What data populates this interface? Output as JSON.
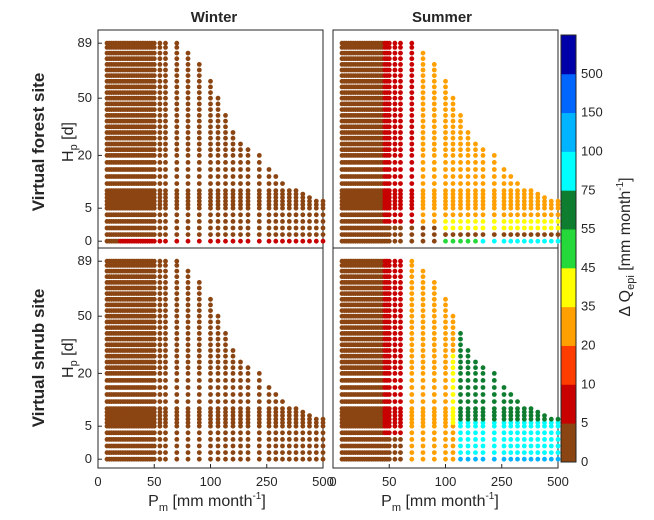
{
  "chart_data": {
    "type": "scatter",
    "col_titles": [
      "Winter",
      "Summer"
    ],
    "row_labels": [
      "Virtual forest site",
      "Virtual shrub site"
    ],
    "xlabel": {
      "main": "P",
      "sub": "m",
      "unit": " [mm month",
      "sup": "-1",
      "close": "]"
    },
    "ylabel": {
      "main": "H",
      "sub": "p",
      "unit": " [d]"
    },
    "x_ticks": [
      "0",
      "50",
      "100",
      "250",
      "500"
    ],
    "y_ticks": [
      "0",
      "5",
      "20",
      "50",
      "89"
    ],
    "xlim": [
      0,
      500
    ],
    "ylim": [
      0,
      89
    ],
    "axes_note": "both axes nonlinear (piecewise), x ticks 0/50/100/250/500, y ticks 0/5/20/50/89",
    "colorbar": {
      "label": {
        "main": "Δ Q",
        "sub": "epi",
        "unit": " [mm month",
        "sup": "-1",
        "close": "]"
      },
      "ticks": [
        "0",
        "5",
        "10",
        "20",
        "35",
        "45",
        "55",
        "75",
        "100",
        "150",
        "500"
      ],
      "colors": [
        "#8b4513",
        "#c80000",
        "#ff3c00",
        "#ffa000",
        "#ffff00",
        "#26d93a",
        "#0f7d30",
        "#00ffff",
        "#00b4ff",
        "#0066ff",
        "#0000a8"
      ]
    },
    "x_columns": [
      8,
      10,
      12,
      14,
      16,
      18,
      20,
      22,
      24,
      26,
      28,
      30,
      32,
      34,
      36,
      38,
      40,
      42,
      44,
      46,
      48,
      50,
      55,
      60,
      70,
      80,
      90,
      100,
      120,
      140,
      160,
      180,
      200,
      230,
      260,
      290,
      320,
      350,
      380,
      410,
      440,
      470,
      500
    ],
    "top_H": [
      89,
      89,
      89,
      89,
      89,
      89,
      89,
      89,
      89,
      89,
      89,
      89,
      89,
      89,
      89,
      89,
      89,
      89,
      89,
      89,
      89,
      89,
      89,
      89,
      89,
      83,
      75,
      65,
      50,
      42,
      34,
      28,
      23,
      20,
      17,
      14.5,
      12.5,
      11,
      10,
      9,
      8,
      7.5,
      7
    ],
    "panels": [
      {
        "season": "Winter",
        "site": "forest",
        "rules": [
          {
            "x_min": 0,
            "x_max": 20,
            "H_max": 0,
            "class": 0
          },
          {
            "x_min": 20,
            "x_max": 501,
            "H_max": 0,
            "class": 1
          }
        ]
      },
      {
        "season": "Summer",
        "site": "forest",
        "rules": [
          {
            "x_min": 45,
            "x_max": 80,
            "H_min": 0,
            "H_max": 89,
            "class": 1
          },
          {
            "x_min": 80,
            "x_max": 501,
            "H_min": 3,
            "H_max": 89,
            "class": 3
          },
          {
            "x_min": 100,
            "x_max": 501,
            "H_min": 2,
            "H_max": 3.5,
            "class": 4
          },
          {
            "x_min": 100,
            "x_max": 501,
            "H_min": 0,
            "H_max": 0,
            "class": 5
          },
          {
            "x_min": 200,
            "x_max": 501,
            "H_min": 0,
            "H_max": 0,
            "class": 7
          },
          {
            "x_min": 45,
            "x_max": 80,
            "H_min": 0,
            "H_max": 2,
            "class": 0
          }
        ]
      },
      {
        "season": "Winter",
        "site": "shrub",
        "rules": []
      },
      {
        "season": "Summer",
        "site": "shrub",
        "rules": [
          {
            "x_min": 45,
            "x_max": 70,
            "H_min": 0,
            "H_max": 89,
            "class": 1
          },
          {
            "x_min": 70,
            "x_max": 501,
            "H_min": 0,
            "H_max": 89,
            "class": 3
          },
          {
            "x_min": 120,
            "x_max": 501,
            "H_min": 6,
            "H_max": 30,
            "class": 4
          },
          {
            "x_min": 140,
            "x_max": 501,
            "H_min": 6,
            "H_max": 89,
            "class": 6
          },
          {
            "x_min": 140,
            "x_max": 501,
            "H_min": 0,
            "H_max": 6,
            "class": 7
          },
          {
            "x_min": 140,
            "x_max": 501,
            "H_min": 0,
            "H_max": 0,
            "class": 8
          },
          {
            "x_min": 45,
            "x_max": 70,
            "H_min": 0,
            "H_max": 3,
            "class": 0
          }
        ]
      }
    ]
  }
}
